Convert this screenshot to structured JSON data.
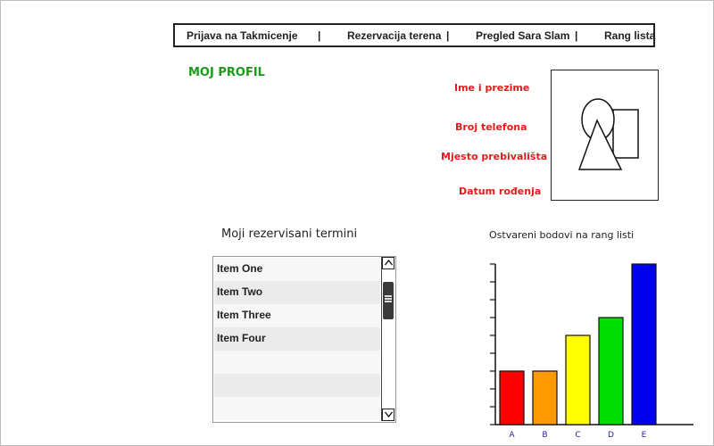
{
  "nav": {
    "items": [
      "Prijava na Takmicenje",
      "Rezervacija terena",
      "Pregled Sara Slam",
      "Rang lista"
    ],
    "separator": "|"
  },
  "page_title": "MOJ PROFIL",
  "profile": {
    "fields": [
      "Ime i prezime",
      "Broj telefona",
      "Mjesto prebivališta",
      "Datum rođenja"
    ],
    "avatar_icon": "image-placeholder-icon"
  },
  "reservations": {
    "title": "Moji rezervisani termini",
    "items": [
      "Item One",
      "Item Two",
      "Item Three",
      "Item Four",
      "",
      "",
      ""
    ]
  },
  "chart_title": "Ostvareni bodovi na rang listi",
  "chart_data": {
    "type": "bar",
    "categories": [
      "A",
      "B",
      "C",
      "D",
      "E"
    ],
    "values": [
      3,
      3,
      5,
      6,
      9
    ],
    "colors": [
      "#ff0000",
      "#ff9900",
      "#ffff00",
      "#00dd00",
      "#0000ee"
    ],
    "ylim": [
      0,
      9
    ],
    "title": "",
    "xlabel": "",
    "ylabel": ""
  }
}
